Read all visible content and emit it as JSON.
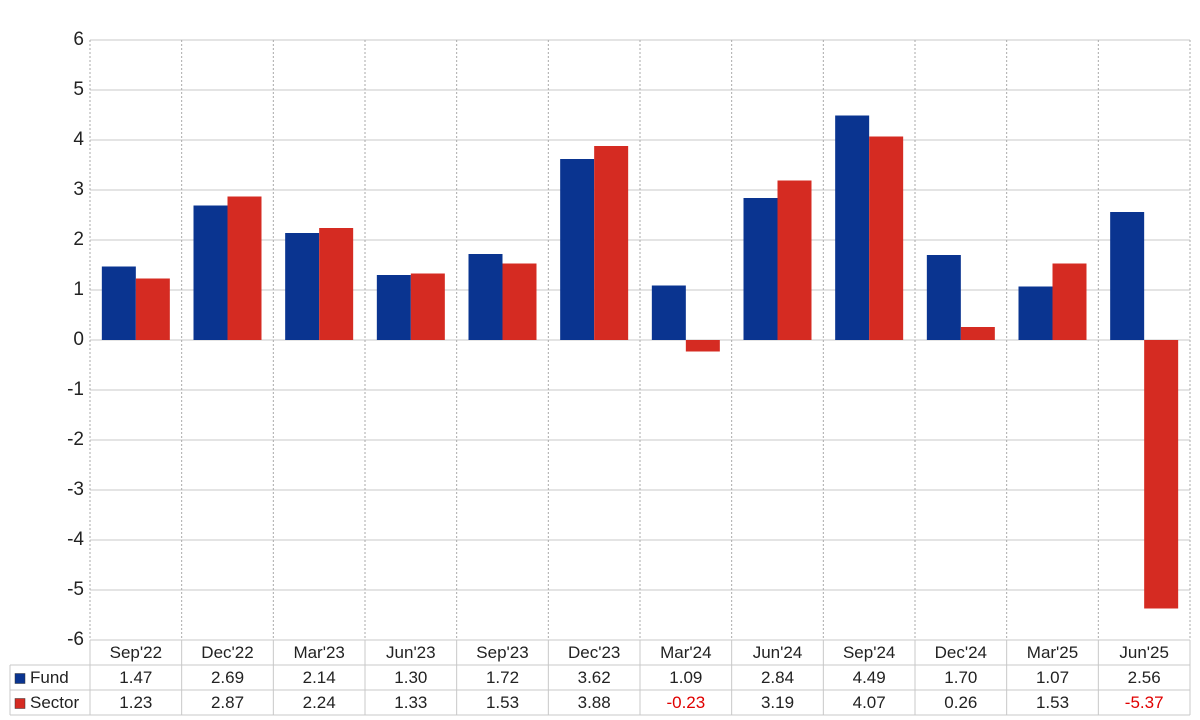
{
  "chart_data": {
    "type": "bar",
    "categories": [
      "Sep'22",
      "Dec'22",
      "Mar'23",
      "Jun'23",
      "Sep'23",
      "Dec'23",
      "Mar'24",
      "Jun'24",
      "Sep'24",
      "Dec'24",
      "Mar'25",
      "Jun'25"
    ],
    "series": [
      {
        "name": "Fund",
        "color": "#0a3490",
        "values": [
          1.47,
          2.69,
          2.14,
          1.3,
          1.72,
          3.62,
          1.09,
          2.84,
          4.49,
          1.7,
          1.07,
          2.56
        ],
        "value_labels": [
          "1.47",
          "2.69",
          "2.14",
          "1.30",
          "1.72",
          "3.62",
          "1.09",
          "2.84",
          "4.49",
          "1.70",
          "1.07",
          "2.56"
        ]
      },
      {
        "name": "Sector",
        "color": "#d52b22",
        "values": [
          1.23,
          2.87,
          2.24,
          1.33,
          1.53,
          3.88,
          -0.23,
          3.19,
          4.07,
          0.26,
          1.53,
          -5.37
        ],
        "value_labels": [
          "1.23",
          "2.87",
          "2.24",
          "1.33",
          "1.53",
          "3.88",
          "-0.23",
          "3.19",
          "4.07",
          "0.26",
          "1.53",
          "-5.37"
        ]
      }
    ],
    "ylim": [
      -6,
      6
    ],
    "yticks": [
      -6,
      -5,
      -4,
      -3,
      -2,
      -1,
      0,
      1,
      2,
      3,
      4,
      5,
      6
    ],
    "grid": true
  }
}
